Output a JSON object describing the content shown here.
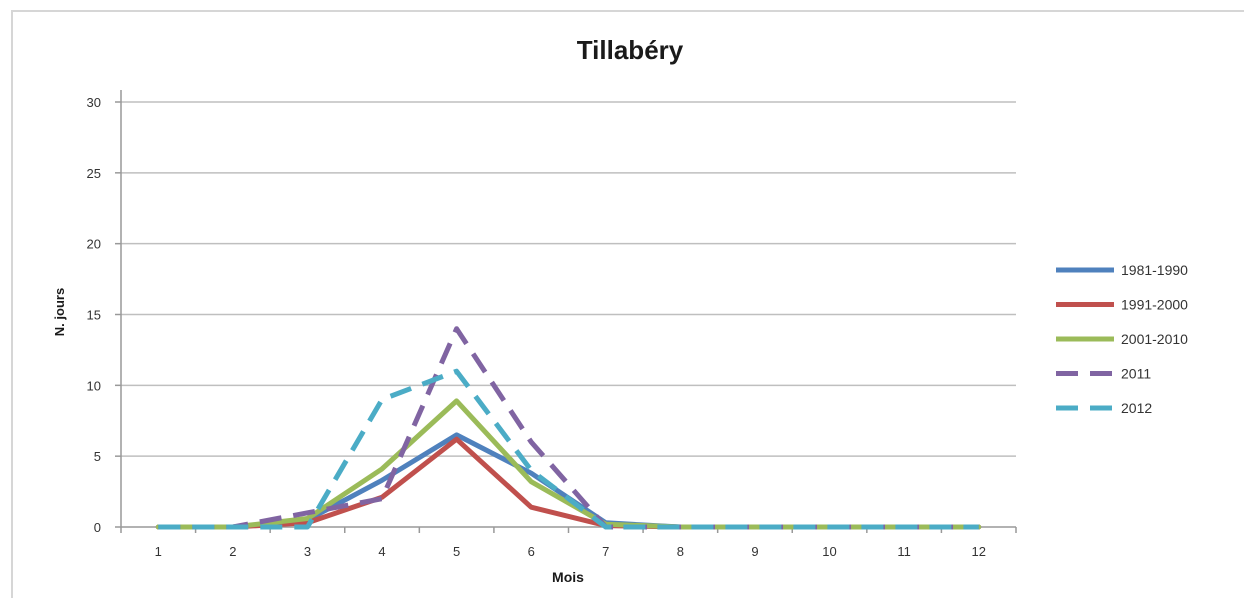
{
  "chart_data": {
    "type": "line",
    "title": "Tillabéry",
    "xlabel": "Mois",
    "ylabel": "N. jours",
    "categories": [
      "1",
      "2",
      "3",
      "4",
      "5",
      "6",
      "7",
      "8",
      "9",
      "10",
      "11",
      "12"
    ],
    "ylim": [
      0,
      30
    ],
    "yticks": [
      0,
      5,
      10,
      15,
      20,
      25,
      30
    ],
    "grid": "horizontal",
    "legend_position": "right",
    "series": [
      {
        "name": "1981-1990",
        "color": "#4f81bd",
        "dash": "solid",
        "values": [
          0,
          0,
          0.5,
          3.3,
          6.5,
          3.8,
          0.3,
          0,
          0,
          0,
          0,
          0
        ]
      },
      {
        "name": "1991-2000",
        "color": "#c0504d",
        "dash": "solid",
        "values": [
          0,
          0,
          0.3,
          2.1,
          6.2,
          1.4,
          0.1,
          0,
          0,
          0,
          0,
          0
        ]
      },
      {
        "name": "2001-2010",
        "color": "#9bbb59",
        "dash": "solid",
        "values": [
          0,
          0,
          0.6,
          4.1,
          8.9,
          3.2,
          0.2,
          0,
          0,
          0,
          0,
          0
        ]
      },
      {
        "name": "2011",
        "color": "#8064a2",
        "dash": "dashed",
        "values": [
          0,
          0,
          1.0,
          2.0,
          14.0,
          6.0,
          0,
          0,
          0,
          0,
          0,
          0
        ]
      },
      {
        "name": "2012",
        "color": "#4bacc6",
        "dash": "dashed",
        "values": [
          0,
          0,
          0,
          9.0,
          11.0,
          4.0,
          0,
          0,
          0,
          0,
          0,
          0
        ]
      }
    ]
  }
}
